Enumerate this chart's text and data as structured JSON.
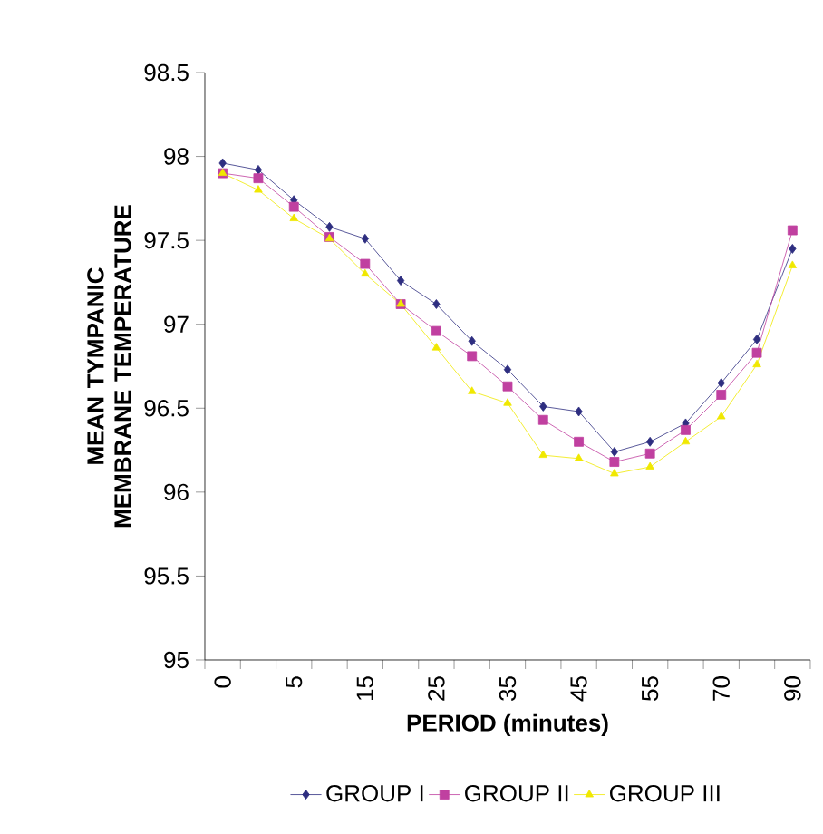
{
  "chart_data": {
    "type": "line",
    "xlabel": "PERIOD (minutes)",
    "ylabel": "MEAN TYMPANIC MEMBRANE TEMPERATURE",
    "categories": [
      "0",
      null,
      "5",
      null,
      "15",
      null,
      "25",
      null,
      "35",
      null,
      "45",
      null,
      "55",
      null,
      "70",
      null,
      "90"
    ],
    "ylim": [
      95,
      98.5
    ],
    "yticks": [
      95,
      95.5,
      96,
      96.5,
      97,
      97.5,
      98,
      98.5
    ],
    "grid": false,
    "legend": "bottom",
    "series": [
      {
        "name": "GROUP I",
        "color": "#2e2e80",
        "marker": "diamond",
        "values": [
          97.96,
          97.92,
          97.74,
          97.58,
          97.51,
          97.26,
          97.12,
          96.9,
          96.73,
          96.51,
          96.48,
          96.24,
          96.3,
          96.41,
          96.65,
          96.91,
          97.45
        ]
      },
      {
        "name": "GROUP II",
        "color": "#c040a0",
        "marker": "square",
        "values": [
          97.9,
          97.87,
          97.7,
          97.52,
          97.36,
          97.12,
          96.96,
          96.81,
          96.63,
          96.43,
          96.3,
          96.18,
          96.23,
          96.37,
          96.58,
          96.83,
          97.56
        ]
      },
      {
        "name": "GROUP III",
        "color": "#f0e800",
        "marker": "triangle",
        "values": [
          97.9,
          97.8,
          97.63,
          97.51,
          97.3,
          97.12,
          96.86,
          96.6,
          96.53,
          96.22,
          96.2,
          96.11,
          96.15,
          96.3,
          96.45,
          96.76,
          97.35
        ]
      }
    ]
  }
}
